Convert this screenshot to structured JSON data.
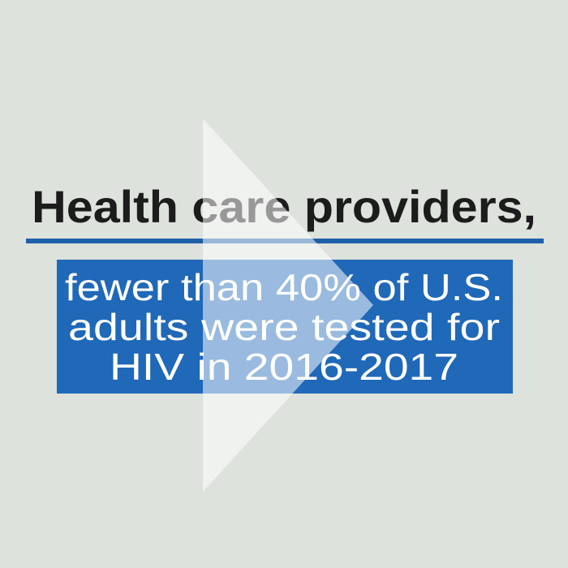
{
  "headline": "Health care providers,",
  "message": {
    "lines": [
      "fewer than 40% of U.S.",
      "adults were tested for",
      "HIV in 2016-2017"
    ]
  }
}
